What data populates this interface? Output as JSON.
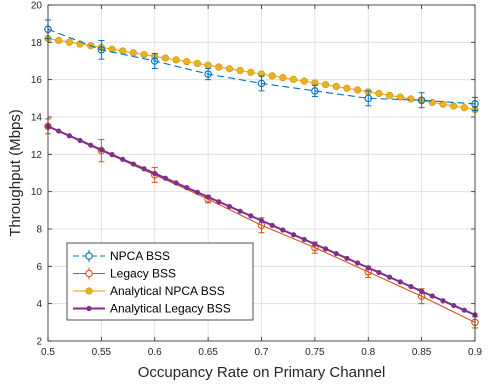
{
  "chart_data": {
    "type": "line",
    "xlabel": "Occupancy Rate on Primary Channel",
    "ylabel": "Throughput (Mbps)",
    "xlim": [
      0.5,
      0.9
    ],
    "ylim": [
      2,
      20
    ],
    "xticks": [
      0.5,
      0.55,
      0.6,
      0.65,
      0.7,
      0.75,
      0.8,
      0.85,
      0.9
    ],
    "xtick_labels": [
      "0.5",
      "0.55",
      "0.6",
      "0.65",
      "0.7",
      "0.75",
      "0.8",
      "0.85",
      "0.9"
    ],
    "yticks": [
      2,
      4,
      6,
      8,
      10,
      12,
      14,
      16,
      18,
      20
    ],
    "ytick_labels": [
      "2",
      "4",
      "6",
      "8",
      "10",
      "12",
      "14",
      "16",
      "18",
      "20"
    ],
    "grid": true,
    "legend_position": "bottom-left",
    "series": [
      {
        "name": "NPCA BSS",
        "color": "#0072bd",
        "style": "dashed-errorbar",
        "marker": "open-circle",
        "x": [
          0.5,
          0.55,
          0.6,
          0.65,
          0.7,
          0.75,
          0.8,
          0.85,
          0.9
        ],
        "y": [
          18.7,
          17.6,
          17.0,
          16.3,
          15.8,
          15.4,
          15.0,
          14.9,
          14.7
        ],
        "error": [
          0.5,
          0.5,
          0.4,
          0.3,
          0.4,
          0.3,
          0.4,
          0.4,
          0.35
        ]
      },
      {
        "name": "Legacy BSS",
        "color": "#d95319",
        "style": "solid-errorbar",
        "marker": "open-circle",
        "x": [
          0.5,
          0.55,
          0.6,
          0.65,
          0.7,
          0.75,
          0.8,
          0.85,
          0.9
        ],
        "y": [
          13.5,
          12.2,
          10.9,
          9.6,
          8.2,
          7.0,
          5.7,
          4.4,
          3.0
        ],
        "error": [
          0.4,
          0.6,
          0.4,
          0.2,
          0.4,
          0.3,
          0.3,
          0.4,
          0.3
        ]
      },
      {
        "name": "Analytical NPCA BSS",
        "color": "#edb120",
        "style": "solid",
        "marker": "filled-circle",
        "x_start": 0.5,
        "x_end": 0.9,
        "points": 41,
        "y_start": 18.2,
        "y_end": 14.4
      },
      {
        "name": "Analytical Legacy BSS",
        "color": "#7e2f8e",
        "style": "solid",
        "marker": "small-dot",
        "x_start": 0.5,
        "x_end": 0.9,
        "points": 41,
        "y_start": 13.5,
        "y_end": 3.4
      }
    ]
  }
}
